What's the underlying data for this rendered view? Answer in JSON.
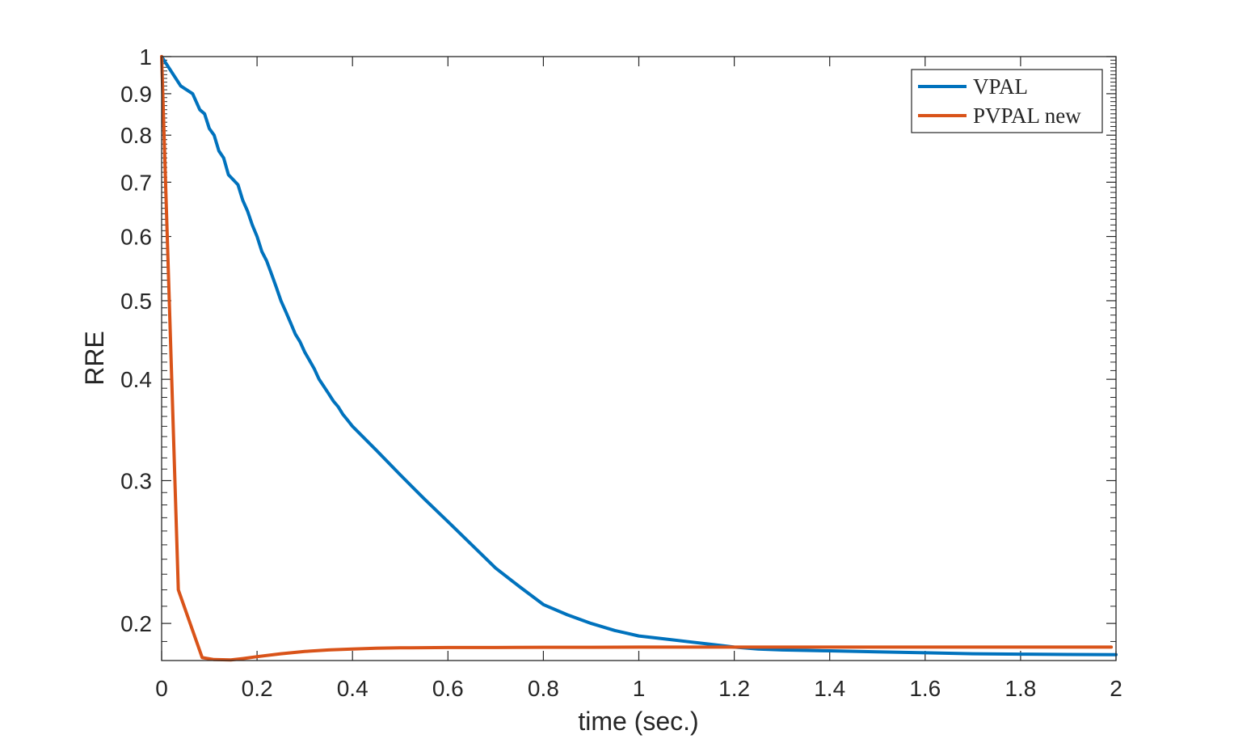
{
  "chart_data": {
    "type": "line",
    "title": "",
    "xlabel": "time (sec.)",
    "ylabel": "RRE",
    "xlim": [
      0,
      2
    ],
    "ylim": [
      0.18,
      1
    ],
    "yscale": "log",
    "grid": false,
    "legend_position": "top-right",
    "xticks": [
      0,
      0.2,
      0.4,
      0.6,
      0.8,
      1,
      1.2,
      1.4,
      1.6,
      1.8,
      2
    ],
    "xtick_labels": [
      "0",
      "0.2",
      "0.4",
      "0.6",
      "0.8",
      "1",
      "1.2",
      "1.4",
      "1.6",
      "1.8",
      "2"
    ],
    "yticks": [
      0.2,
      0.3,
      0.4,
      0.5,
      0.6,
      0.7,
      0.8,
      0.9,
      1
    ],
    "ytick_labels": [
      "0.2",
      "0.3",
      "0.4",
      "0.5",
      "0.6",
      "0.7",
      "0.8",
      "0.9",
      "1"
    ],
    "series": [
      {
        "name": "VPAL",
        "color": "#0072BD",
        "x": [
          0,
          0.04,
          0.065,
          0.08,
          0.09,
          0.1,
          0.11,
          0.12,
          0.13,
          0.14,
          0.15,
          0.16,
          0.17,
          0.18,
          0.19,
          0.2,
          0.21,
          0.22,
          0.23,
          0.24,
          0.25,
          0.26,
          0.27,
          0.28,
          0.29,
          0.3,
          0.31,
          0.32,
          0.33,
          0.34,
          0.35,
          0.36,
          0.37,
          0.38,
          0.39,
          0.4,
          0.45,
          0.5,
          0.55,
          0.6,
          0.65,
          0.7,
          0.75,
          0.8,
          0.85,
          0.9,
          0.95,
          1.0,
          1.05,
          1.1,
          1.15,
          1.2,
          1.25,
          1.3,
          1.4,
          1.5,
          1.6,
          1.7,
          1.8,
          1.9,
          2.0
        ],
        "y": [
          1.0,
          0.92,
          0.9,
          0.86,
          0.85,
          0.815,
          0.8,
          0.765,
          0.75,
          0.715,
          0.705,
          0.695,
          0.665,
          0.645,
          0.62,
          0.6,
          0.575,
          0.56,
          0.54,
          0.52,
          0.5,
          0.485,
          0.47,
          0.455,
          0.445,
          0.432,
          0.422,
          0.412,
          0.4,
          0.392,
          0.384,
          0.376,
          0.37,
          0.362,
          0.356,
          0.35,
          0.327,
          0.305,
          0.285,
          0.267,
          0.25,
          0.234,
          0.222,
          0.211,
          0.205,
          0.2,
          0.196,
          0.193,
          0.1915,
          0.19,
          0.1885,
          0.187,
          0.186,
          0.1855,
          0.185,
          0.1845,
          0.184,
          0.1835,
          0.1833,
          0.1831,
          0.183
        ]
      },
      {
        "name": "PVPAL new",
        "color": "#D95319",
        "x": [
          0,
          0.035,
          0.085,
          0.11,
          0.145,
          0.17,
          0.2,
          0.25,
          0.3,
          0.35,
          0.4,
          0.45,
          0.5,
          0.6,
          0.7,
          0.8,
          0.9,
          1.0,
          1.2,
          1.4,
          1.6,
          1.8,
          1.99
        ],
        "y": [
          1.0,
          0.22,
          0.1815,
          0.1805,
          0.1803,
          0.181,
          0.182,
          0.1835,
          0.1847,
          0.1855,
          0.186,
          0.1864,
          0.1866,
          0.1868,
          0.1868,
          0.1869,
          0.1869,
          0.187,
          0.187,
          0.187,
          0.187,
          0.187,
          0.187
        ]
      }
    ]
  }
}
